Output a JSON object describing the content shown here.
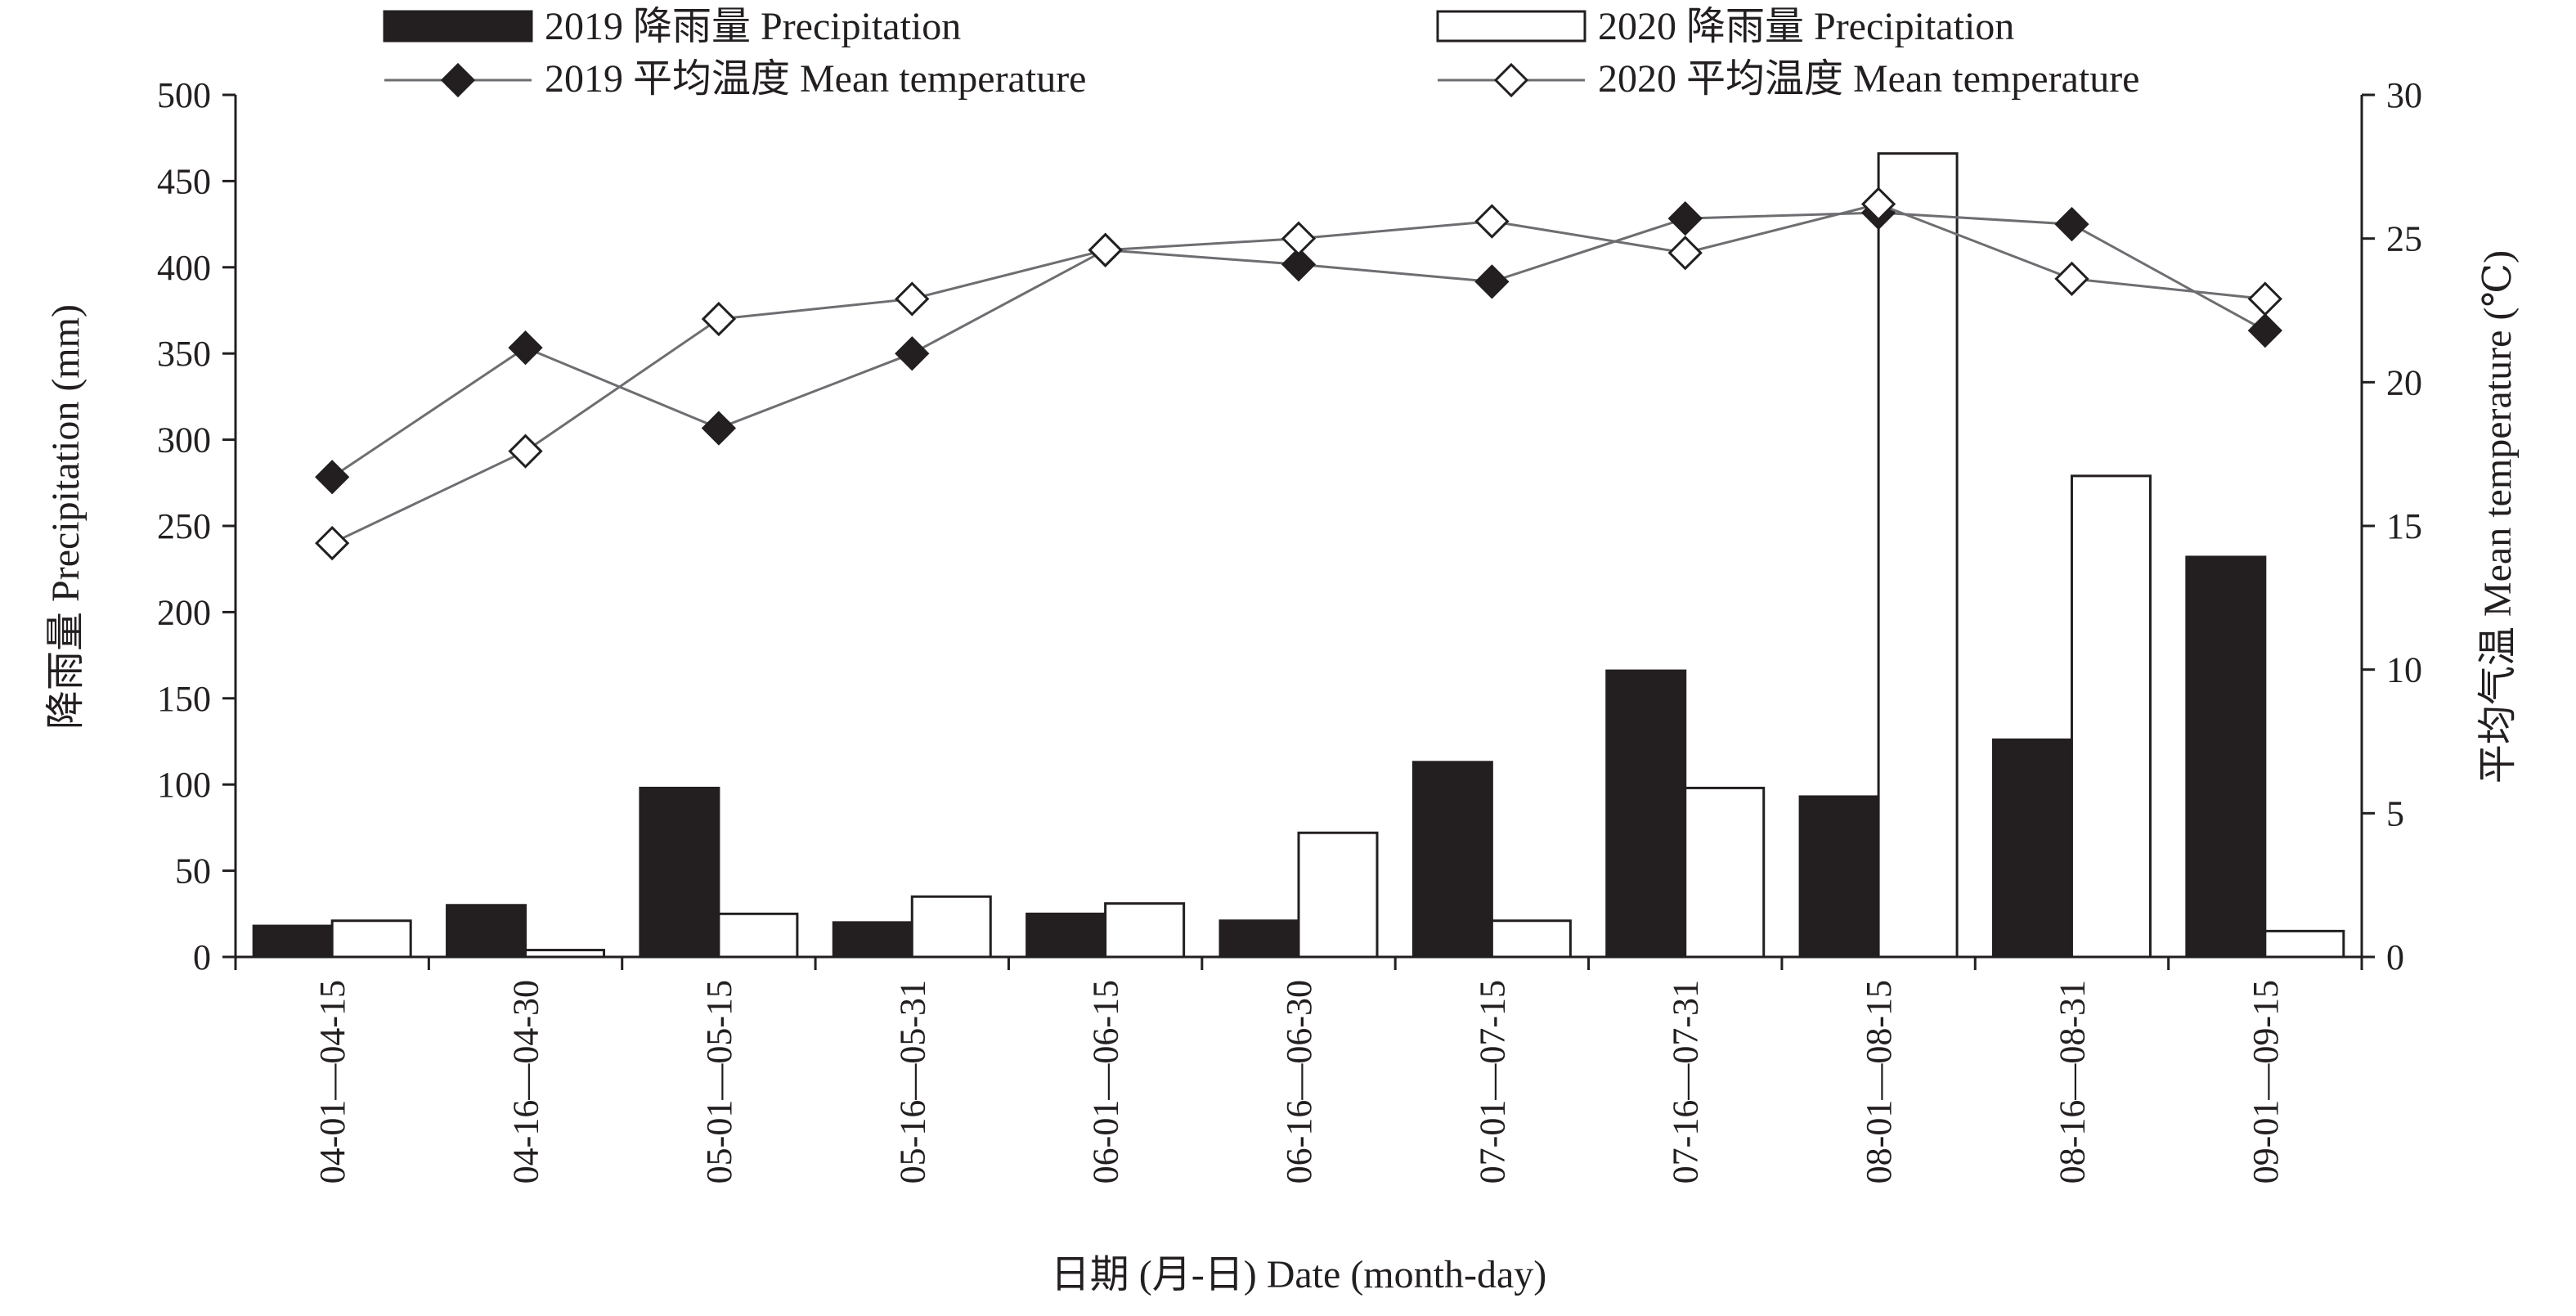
{
  "chart_data": {
    "type": "bar+line",
    "categories": [
      "04-01—04-15",
      "04-16—04-30",
      "05-01—05-15",
      "05-16—05-31",
      "06-01—06-15",
      "06-16—06-30",
      "07-01—07-15",
      "07-16—07-31",
      "08-01—08-15",
      "08-16—08-31",
      "09-01—09-15"
    ],
    "bar_series": [
      {
        "name": "2019 降雨量 Precipitation",
        "color": "#231f20",
        "fill": "#231f20",
        "values": [
          18,
          30,
          98,
          20,
          25,
          21,
          113,
          166,
          93,
          126,
          232
        ]
      },
      {
        "name": "2020 降雨量 Precipitation",
        "color": "#231f20",
        "fill": "#ffffff",
        "values": [
          21,
          4,
          25,
          35,
          31,
          72,
          21,
          98,
          466,
          279,
          15
        ]
      }
    ],
    "line_series": [
      {
        "name": "2019 平均温度 Mean temperature",
        "marker": "filled-diamond",
        "color": "#231f20",
        "values": [
          16.7,
          21.2,
          18.4,
          21.0,
          24.6,
          24.1,
          23.5,
          25.7,
          25.9,
          25.5,
          21.8
        ]
      },
      {
        "name": "2020 平均温度 Mean temperature",
        "marker": "open-diamond",
        "color": "#231f20",
        "values": [
          14.4,
          17.6,
          22.2,
          22.9,
          24.6,
          25.0,
          25.6,
          24.5,
          26.2,
          23.6,
          22.9
        ]
      }
    ],
    "y_left": {
      "label": "降雨量 Precipitation (mm)",
      "lim": [
        0,
        500
      ],
      "ticks": [
        "0",
        "50",
        "100",
        "150",
        "200",
        "250",
        "300",
        "350",
        "400",
        "450",
        "500"
      ]
    },
    "y_right": {
      "label": "平均气温 Mean temperature (℃)",
      "lim": [
        0,
        30
      ],
      "ticks": [
        "0",
        "5",
        "10",
        "15",
        "20",
        "25",
        "30"
      ]
    },
    "x_label": "日期 (月-日) Date (month-day)",
    "grid": false,
    "legend_position": "top"
  }
}
